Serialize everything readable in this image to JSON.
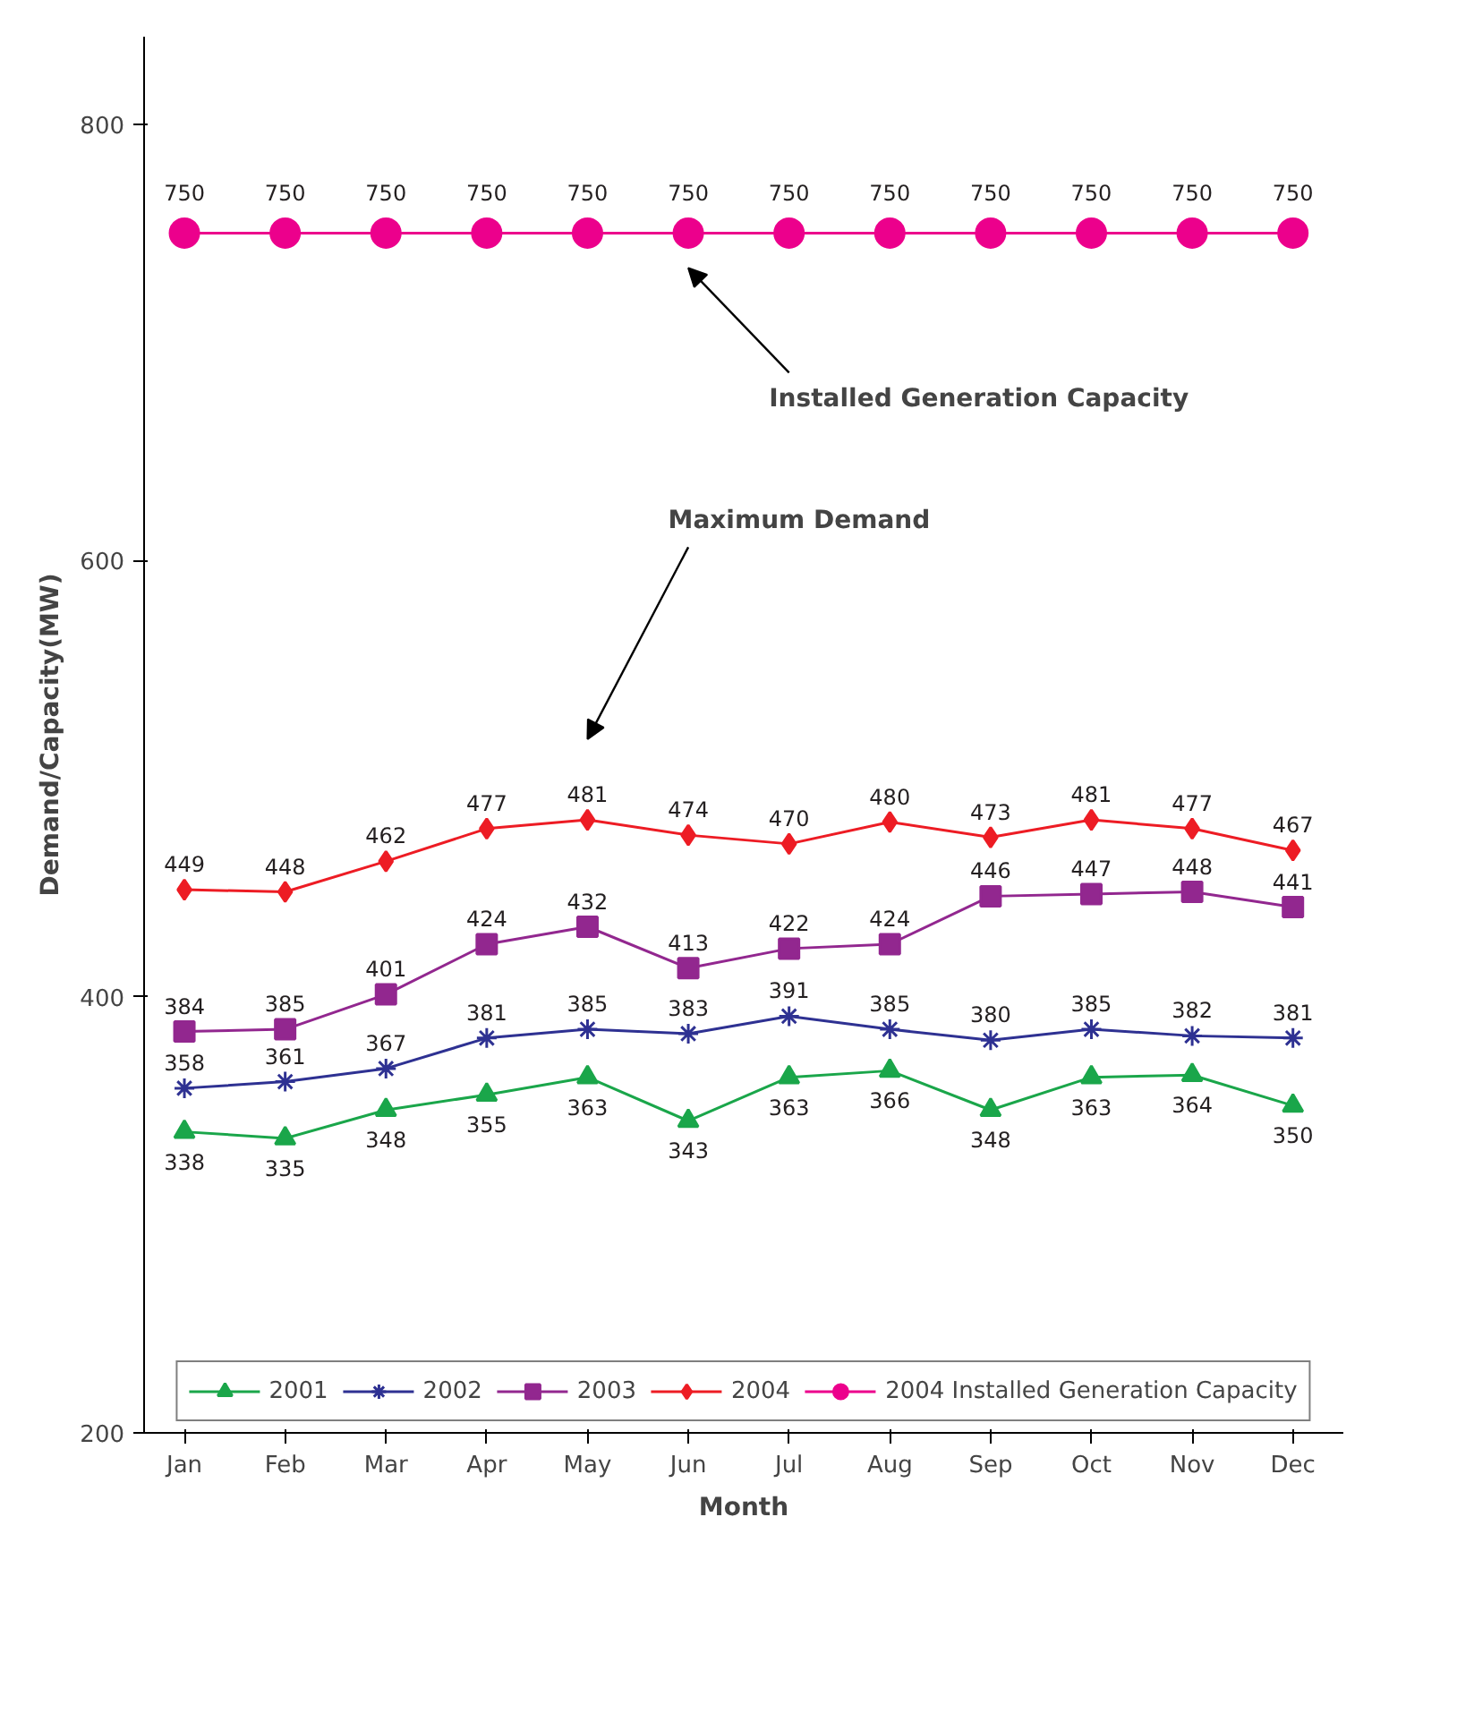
{
  "chart_data": {
    "type": "line",
    "xlabel": "Month",
    "ylabel": "Demand/Capacity(MW)",
    "categories": [
      "Jan",
      "Feb",
      "Mar",
      "Apr",
      "May",
      "Jun",
      "Jul",
      "Aug",
      "Sep",
      "Oct",
      "Nov",
      "Dec"
    ],
    "series": [
      {
        "name": "2001",
        "color": "#1aa64a",
        "marker": "triangle",
        "values": [
          338,
          335,
          348,
          355,
          363,
          343,
          363,
          366,
          348,
          363,
          364,
          350
        ]
      },
      {
        "name": "2002",
        "color": "#2e3192",
        "marker": "cross",
        "values": [
          358,
          361,
          367,
          381,
          385,
          383,
          391,
          385,
          380,
          385,
          382,
          381
        ]
      },
      {
        "name": "2003",
        "color": "#92278f",
        "marker": "square",
        "values": [
          384,
          385,
          401,
          424,
          432,
          413,
          422,
          424,
          446,
          447,
          448,
          441
        ]
      },
      {
        "name": "2004",
        "color": "#ed1c24",
        "marker": "diamond",
        "values": [
          449,
          448,
          462,
          477,
          481,
          474,
          470,
          480,
          473,
          481,
          477,
          467
        ]
      },
      {
        "name": "2004 Installed Generation Capacity",
        "color": "#ec008c",
        "marker": "circle",
        "values": [
          750,
          750,
          750,
          750,
          750,
          750,
          750,
          750,
          750,
          750,
          750,
          750
        ]
      }
    ],
    "ylim": [
      200,
      840
    ],
    "yticks": [
      200,
      400,
      600,
      800
    ],
    "data_labels": true,
    "grid": false,
    "legend": "bottom",
    "line_style": "solid",
    "annotations": [
      "Installed Generation Capacity",
      "Maximum Demand"
    ]
  }
}
